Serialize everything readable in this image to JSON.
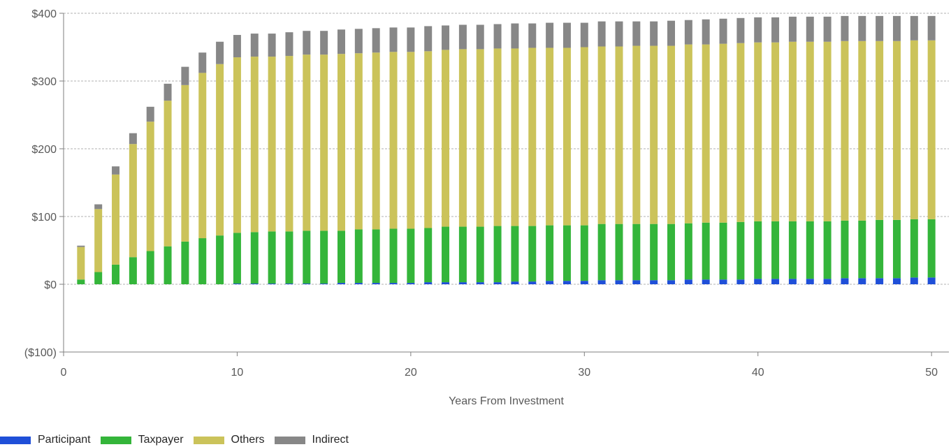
{
  "chart_data": {
    "type": "bar",
    "stacked": true,
    "xlabel": "Years From Investment",
    "ylabel": "",
    "xlim": [
      0,
      51
    ],
    "ylim": [
      -100,
      400
    ],
    "x_ticks": [
      0,
      10,
      20,
      30,
      40,
      50
    ],
    "y_ticks": [
      400,
      300,
      200,
      100,
      0,
      -100
    ],
    "y_tick_labels": [
      "$400",
      "$300",
      "$200",
      "$100",
      "$0",
      "($100)"
    ],
    "grid": "horizontal dashed",
    "legend_position": "bottom-left",
    "x": [
      1,
      2,
      3,
      4,
      5,
      6,
      7,
      8,
      9,
      10,
      11,
      12,
      13,
      14,
      15,
      16,
      17,
      18,
      19,
      20,
      21,
      22,
      23,
      24,
      25,
      26,
      27,
      28,
      29,
      30,
      31,
      32,
      33,
      34,
      35,
      36,
      37,
      38,
      39,
      40,
      41,
      42,
      43,
      44,
      45,
      46,
      47,
      48,
      49,
      50
    ],
    "series": [
      {
        "name": "Participant",
        "color": "#1f4fd8",
        "values": [
          0,
          0,
          0,
          0,
          0,
          0,
          0,
          0,
          0,
          1,
          1,
          1,
          1,
          1,
          1,
          2,
          2,
          2,
          2,
          2,
          3,
          3,
          3,
          3,
          3,
          4,
          4,
          5,
          5,
          5,
          6,
          6,
          6,
          6,
          6,
          7,
          7,
          7,
          7,
          8,
          8,
          8,
          8,
          8,
          9,
          9,
          9,
          9,
          10,
          10
        ]
      },
      {
        "name": "Taxpayer",
        "color": "#34b53a",
        "values": [
          7,
          18,
          29,
          40,
          49,
          56,
          63,
          68,
          72,
          75,
          76,
          77,
          77,
          78,
          78,
          77,
          79,
          79,
          80,
          80,
          80,
          82,
          82,
          82,
          83,
          82,
          82,
          82,
          82,
          82,
          83,
          83,
          83,
          83,
          83,
          83,
          84,
          84,
          85,
          85,
          85,
          85,
          85,
          85,
          85,
          85,
          86,
          86,
          86,
          86
        ]
      },
      {
        "name": "Others",
        "color": "#cbc35a",
        "values": [
          48,
          93,
          133,
          167,
          191,
          215,
          231,
          244,
          253,
          259,
          259,
          258,
          259,
          260,
          260,
          261,
          260,
          261,
          261,
          261,
          261,
          261,
          262,
          262,
          262,
          262,
          263,
          262,
          262,
          263,
          262,
          262,
          263,
          263,
          263,
          264,
          263,
          264,
          264,
          264,
          264,
          265,
          265,
          265,
          265,
          265,
          264,
          264,
          264,
          264
        ]
      },
      {
        "name": "Indirect",
        "color": "#878787",
        "values": [
          2,
          7,
          12,
          16,
          22,
          25,
          27,
          30,
          33,
          33,
          34,
          34,
          35,
          35,
          35,
          36,
          36,
          36,
          36,
          36,
          37,
          36,
          36,
          36,
          36,
          37,
          36,
          37,
          37,
          36,
          37,
          37,
          36,
          36,
          37,
          36,
          37,
          37,
          37,
          37,
          37,
          37,
          37,
          37,
          37,
          37,
          37,
          37,
          36,
          36
        ]
      }
    ]
  }
}
